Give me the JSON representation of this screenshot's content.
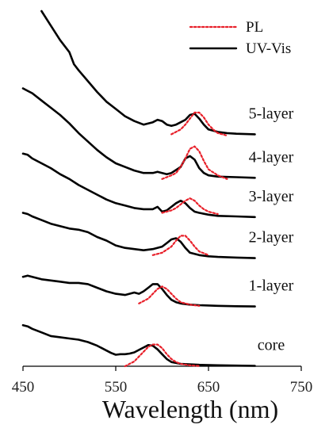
{
  "chart_data": {
    "type": "line",
    "xlabel": "Wavelength (nm)",
    "xlim": [
      450,
      750
    ],
    "xticks": [
      450,
      550,
      650,
      750
    ],
    "xtick_labels": [
      "450",
      "550",
      "650",
      "750"
    ],
    "ylabel": "",
    "grid": false,
    "legend": {
      "placement": "top-right",
      "entries": [
        {
          "label": "PL",
          "style": "dotted",
          "color": "#e8202a"
        },
        {
          "label": "UV-Vis",
          "style": "solid",
          "color": "#000000"
        }
      ]
    },
    "colors": {
      "uv": "#000000",
      "pl": "#e8202a"
    },
    "y_note": "normalized intensity; curves vertically offset, 0 = bottom axis",
    "series": [
      {
        "label": "core",
        "uv": {
          "x": [
            450,
            455,
            460,
            470,
            480,
            490,
            500,
            510,
            520,
            530,
            540,
            545,
            550,
            555,
            560,
            565,
            570,
            575,
            580,
            585,
            590,
            595,
            600,
            605,
            610,
            620,
            640,
            660,
            680,
            700
          ],
          "y": [
            0.34,
            0.33,
            0.31,
            0.28,
            0.25,
            0.24,
            0.23,
            0.22,
            0.2,
            0.17,
            0.13,
            0.11,
            0.095,
            0.1,
            0.1,
            0.105,
            0.115,
            0.135,
            0.155,
            0.175,
            0.17,
            0.14,
            0.1,
            0.06,
            0.035,
            0.02,
            0.012,
            0.008,
            0.005,
            0.003
          ]
        },
        "pl": {
          "x": [
            560,
            570,
            580,
            585,
            590,
            595,
            600,
            605,
            610,
            615,
            620,
            630,
            640
          ],
          "y": [
            0.0,
            0.04,
            0.12,
            0.16,
            0.18,
            0.18,
            0.15,
            0.1,
            0.06,
            0.035,
            0.02,
            0.007,
            0.002
          ]
        }
      },
      {
        "label": "1-layer",
        "uv": {
          "x": [
            450,
            455,
            460,
            470,
            480,
            490,
            500,
            510,
            520,
            530,
            540,
            550,
            560,
            570,
            575,
            580,
            585,
            590,
            595,
            600,
            605,
            610,
            615,
            620,
            630,
            640,
            660,
            680,
            700
          ],
          "y": [
            0.74,
            0.75,
            0.74,
            0.72,
            0.71,
            0.7,
            0.69,
            0.69,
            0.68,
            0.65,
            0.62,
            0.6,
            0.59,
            0.61,
            0.6,
            0.62,
            0.65,
            0.68,
            0.68,
            0.64,
            0.59,
            0.55,
            0.53,
            0.52,
            0.51,
            0.505,
            0.5,
            0.497,
            0.495
          ]
        },
        "pl": {
          "x": [
            575,
            585,
            590,
            595,
            600,
            605,
            610,
            615,
            620,
            630,
            640
          ],
          "y": [
            0.52,
            0.56,
            0.6,
            0.64,
            0.66,
            0.64,
            0.6,
            0.56,
            0.53,
            0.51,
            0.5
          ]
        }
      },
      {
        "label": "2-layer",
        "uv": {
          "x": [
            450,
            455,
            460,
            470,
            480,
            490,
            500,
            510,
            520,
            530,
            540,
            550,
            560,
            570,
            580,
            590,
            600,
            605,
            610,
            615,
            620,
            625,
            630,
            640,
            650,
            660,
            680,
            700
          ],
          "y": [
            1.27,
            1.26,
            1.24,
            1.21,
            1.18,
            1.16,
            1.14,
            1.13,
            1.11,
            1.07,
            1.04,
            1.0,
            0.98,
            0.97,
            0.96,
            0.97,
            0.99,
            1.02,
            1.05,
            1.06,
            1.03,
            0.98,
            0.94,
            0.92,
            0.91,
            0.905,
            0.9,
            0.895
          ]
        },
        "pl": {
          "x": [
            590,
            600,
            610,
            615,
            620,
            625,
            630,
            635,
            640,
            650
          ],
          "y": [
            0.92,
            0.94,
            0.99,
            1.04,
            1.08,
            1.08,
            1.04,
            0.99,
            0.95,
            0.92
          ]
        }
      },
      {
        "label": "3-layer",
        "uv": {
          "x": [
            450,
            455,
            460,
            470,
            480,
            490,
            500,
            510,
            520,
            530,
            540,
            550,
            560,
            570,
            580,
            590,
            595,
            600,
            605,
            610,
            615,
            620,
            625,
            630,
            635,
            640,
            650,
            660,
            680,
            700
          ],
          "y": [
            1.76,
            1.75,
            1.72,
            1.68,
            1.64,
            1.59,
            1.55,
            1.5,
            1.46,
            1.42,
            1.38,
            1.35,
            1.33,
            1.31,
            1.3,
            1.3,
            1.32,
            1.28,
            1.29,
            1.32,
            1.35,
            1.37,
            1.35,
            1.31,
            1.28,
            1.27,
            1.255,
            1.245,
            1.24,
            1.235
          ]
        },
        "pl": {
          "x": [
            600,
            610,
            615,
            620,
            625,
            630,
            635,
            640,
            645,
            650,
            660
          ],
          "y": [
            1.27,
            1.29,
            1.31,
            1.34,
            1.37,
            1.39,
            1.37,
            1.33,
            1.3,
            1.28,
            1.26
          ]
        }
      },
      {
        "label": "4-layer",
        "uv": {
          "x": [
            450,
            455,
            460,
            470,
            480,
            490,
            500,
            510,
            520,
            530,
            540,
            550,
            560,
            570,
            580,
            590,
            595,
            600,
            605,
            610,
            620,
            625,
            630,
            635,
            640,
            645,
            650,
            660,
            680,
            700
          ],
          "y": [
            2.3,
            2.28,
            2.26,
            2.2,
            2.14,
            2.08,
            2.01,
            1.93,
            1.86,
            1.79,
            1.73,
            1.68,
            1.65,
            1.62,
            1.6,
            1.6,
            1.61,
            1.6,
            1.59,
            1.6,
            1.65,
            1.72,
            1.74,
            1.71,
            1.64,
            1.6,
            1.58,
            1.57,
            1.565,
            1.56
          ]
        },
        "pl": {
          "x": [
            600,
            610,
            615,
            620,
            625,
            630,
            635,
            640,
            645,
            650,
            660,
            670
          ],
          "y": [
            1.55,
            1.58,
            1.6,
            1.65,
            1.72,
            1.8,
            1.82,
            1.78,
            1.7,
            1.63,
            1.58,
            1.55
          ]
        }
      },
      {
        "label": "5-layer",
        "uv": {
          "x": [
            470,
            480,
            490,
            500,
            505,
            510,
            520,
            530,
            540,
            550,
            560,
            570,
            580,
            590,
            595,
            600,
            605,
            610,
            615,
            620,
            625,
            630,
            635,
            640,
            645,
            650,
            660,
            670,
            680,
            700
          ],
          "y": [
            2.94,
            2.82,
            2.7,
            2.6,
            2.5,
            2.45,
            2.36,
            2.27,
            2.19,
            2.13,
            2.07,
            2.03,
            2.0,
            2.02,
            2.04,
            2.03,
            2.0,
            1.99,
            2.0,
            2.02,
            2.04,
            2.08,
            2.09,
            2.05,
            2.0,
            1.96,
            1.94,
            1.93,
            1.925,
            1.92
          ]
        },
        "pl": {
          "x": [
            610,
            620,
            625,
            630,
            635,
            640,
            645,
            650,
            655,
            660,
            670
          ],
          "y": [
            1.92,
            1.96,
            2.0,
            2.05,
            2.1,
            2.1,
            2.06,
            2.0,
            1.96,
            1.93,
            1.91
          ]
        }
      }
    ],
    "ylim": [
      0,
      2.94
    ]
  }
}
